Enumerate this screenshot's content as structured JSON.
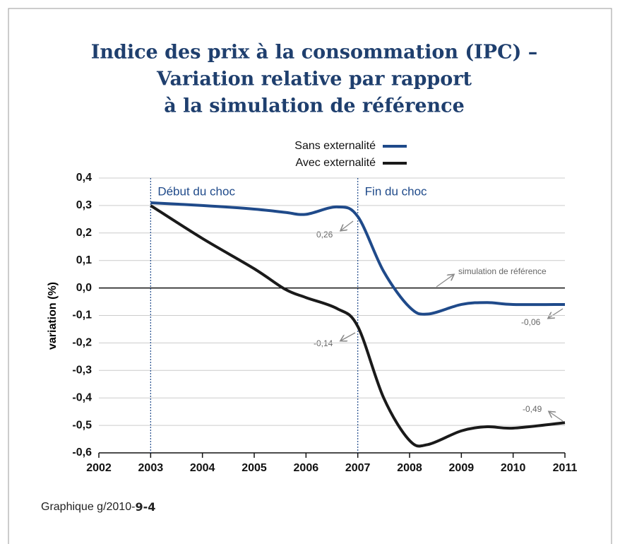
{
  "chart_data": {
    "type": "line",
    "title": [
      "Indice des prix à la consommation (IPC) –",
      "Variation relative par rapport",
      "à la simulation de référence"
    ],
    "y_label": "variation (%)",
    "x": [
      2003,
      2004,
      2005,
      2005.6,
      2006,
      2006.6,
      2007,
      2007.5,
      2008,
      2008.35,
      2009,
      2009.5,
      2010,
      2011
    ],
    "series": [
      {
        "name": "Sans externalité",
        "color": "#1f4a8a",
        "values": [
          0.31,
          0.3,
          0.287,
          0.275,
          0.268,
          0.295,
          0.26,
          0.06,
          -0.07,
          -0.095,
          -0.06,
          -0.053,
          -0.06,
          -0.06
        ]
      },
      {
        "name": "Avec externalité",
        "color": "#1a1a1a",
        "values": [
          0.3,
          0.18,
          0.07,
          -0.005,
          -0.035,
          -0.075,
          -0.14,
          -0.4,
          -0.555,
          -0.57,
          -0.52,
          -0.505,
          -0.51,
          -0.49
        ]
      }
    ],
    "xlim": [
      2002,
      2011
    ],
    "xticks": [
      2002,
      2003,
      2004,
      2005,
      2006,
      2007,
      2008,
      2009,
      2010,
      2011
    ],
    "ylim": [
      -0.6,
      0.4
    ],
    "yticks": [
      {
        "value": -0.6,
        "label": "-0,6"
      },
      {
        "value": -0.5,
        "label": "-0,5"
      },
      {
        "value": -0.4,
        "label": "-0,4"
      },
      {
        "value": -0.3,
        "label": "-0,3"
      },
      {
        "value": -0.2,
        "label": "-0,2"
      },
      {
        "value": -0.1,
        "label": "-0,1"
      },
      {
        "value": 0,
        "label": "0,0"
      },
      {
        "value": 0.1,
        "label": "0,1"
      },
      {
        "value": 0.2,
        "label": "0,2"
      },
      {
        "value": 0.3,
        "label": "0,3"
      },
      {
        "value": 0.4,
        "label": "0,4"
      }
    ],
    "grid": true,
    "markers": [
      {
        "x": 2003,
        "label": "Début du choc"
      },
      {
        "x": 2007,
        "label": "Fin du choc"
      }
    ],
    "annotations": [
      "0,26",
      "-0,14",
      "-0,06",
      "-0,49",
      "simulation de référence"
    ],
    "footer_prefix": "Graphique g/2010-",
    "footer_number": "9-4"
  }
}
